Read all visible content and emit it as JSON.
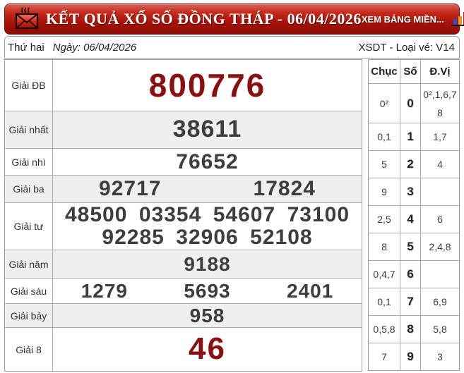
{
  "header": {
    "title": "KẾT QUẢ XỔ SỐ ĐỒNG THÁP - 06/04/2026",
    "link_label": "XEM BẢNG MIỀN...",
    "bar_color": "#a81208",
    "text_color": "#ffffff"
  },
  "subheader": {
    "weekday": "Thứ hai",
    "date_label": "Ngày: 06/04/2026",
    "draw_info": "XSDT - Loại vé: V14"
  },
  "results": {
    "highlight_color": "#8b0f0f",
    "number_color": "#3d3d3d",
    "rows": [
      {
        "label": "Giải ĐB",
        "values": [
          "800776"
        ],
        "highlight": true
      },
      {
        "label": "Giải nhất",
        "values": [
          "38611"
        ]
      },
      {
        "label": "Giải nhì",
        "values": [
          "76652"
        ]
      },
      {
        "label": "Giải ba",
        "values": [
          "92717",
          "17824"
        ]
      },
      {
        "label": "Giải tư",
        "values": [
          "48500",
          "03354",
          "54607",
          "73100",
          "92285",
          "32906",
          "52108"
        ]
      },
      {
        "label": "Giải năm",
        "values": [
          "9188"
        ]
      },
      {
        "label": "Giải sáu",
        "values": [
          "1279",
          "5693",
          "2401"
        ]
      },
      {
        "label": "Giải bảy",
        "values": [
          "958"
        ]
      },
      {
        "label": "Giải 8",
        "values": [
          "46"
        ],
        "highlight": true
      }
    ]
  },
  "digit_stats": {
    "columns": [
      "Chục",
      "Số",
      "Đ.Vị"
    ],
    "rows": [
      {
        "chuc": "0²",
        "so": "0",
        "dvi": "0²,1,6,7\n8"
      },
      {
        "chuc": "0,1",
        "so": "1",
        "dvi": "1,7"
      },
      {
        "chuc": "5",
        "so": "2",
        "dvi": "4"
      },
      {
        "chuc": "9",
        "so": "3",
        "dvi": ""
      },
      {
        "chuc": "2,5",
        "so": "4",
        "dvi": "6"
      },
      {
        "chuc": "8",
        "so": "5",
        "dvi": "2,4,8"
      },
      {
        "chuc": "0,4,7",
        "so": "6",
        "dvi": ""
      },
      {
        "chuc": "0,1",
        "so": "7",
        "dvi": "6,9"
      },
      {
        "chuc": "0,5,8",
        "so": "8",
        "dvi": "5,8"
      },
      {
        "chuc": "7",
        "so": "9",
        "dvi": "3"
      }
    ]
  }
}
